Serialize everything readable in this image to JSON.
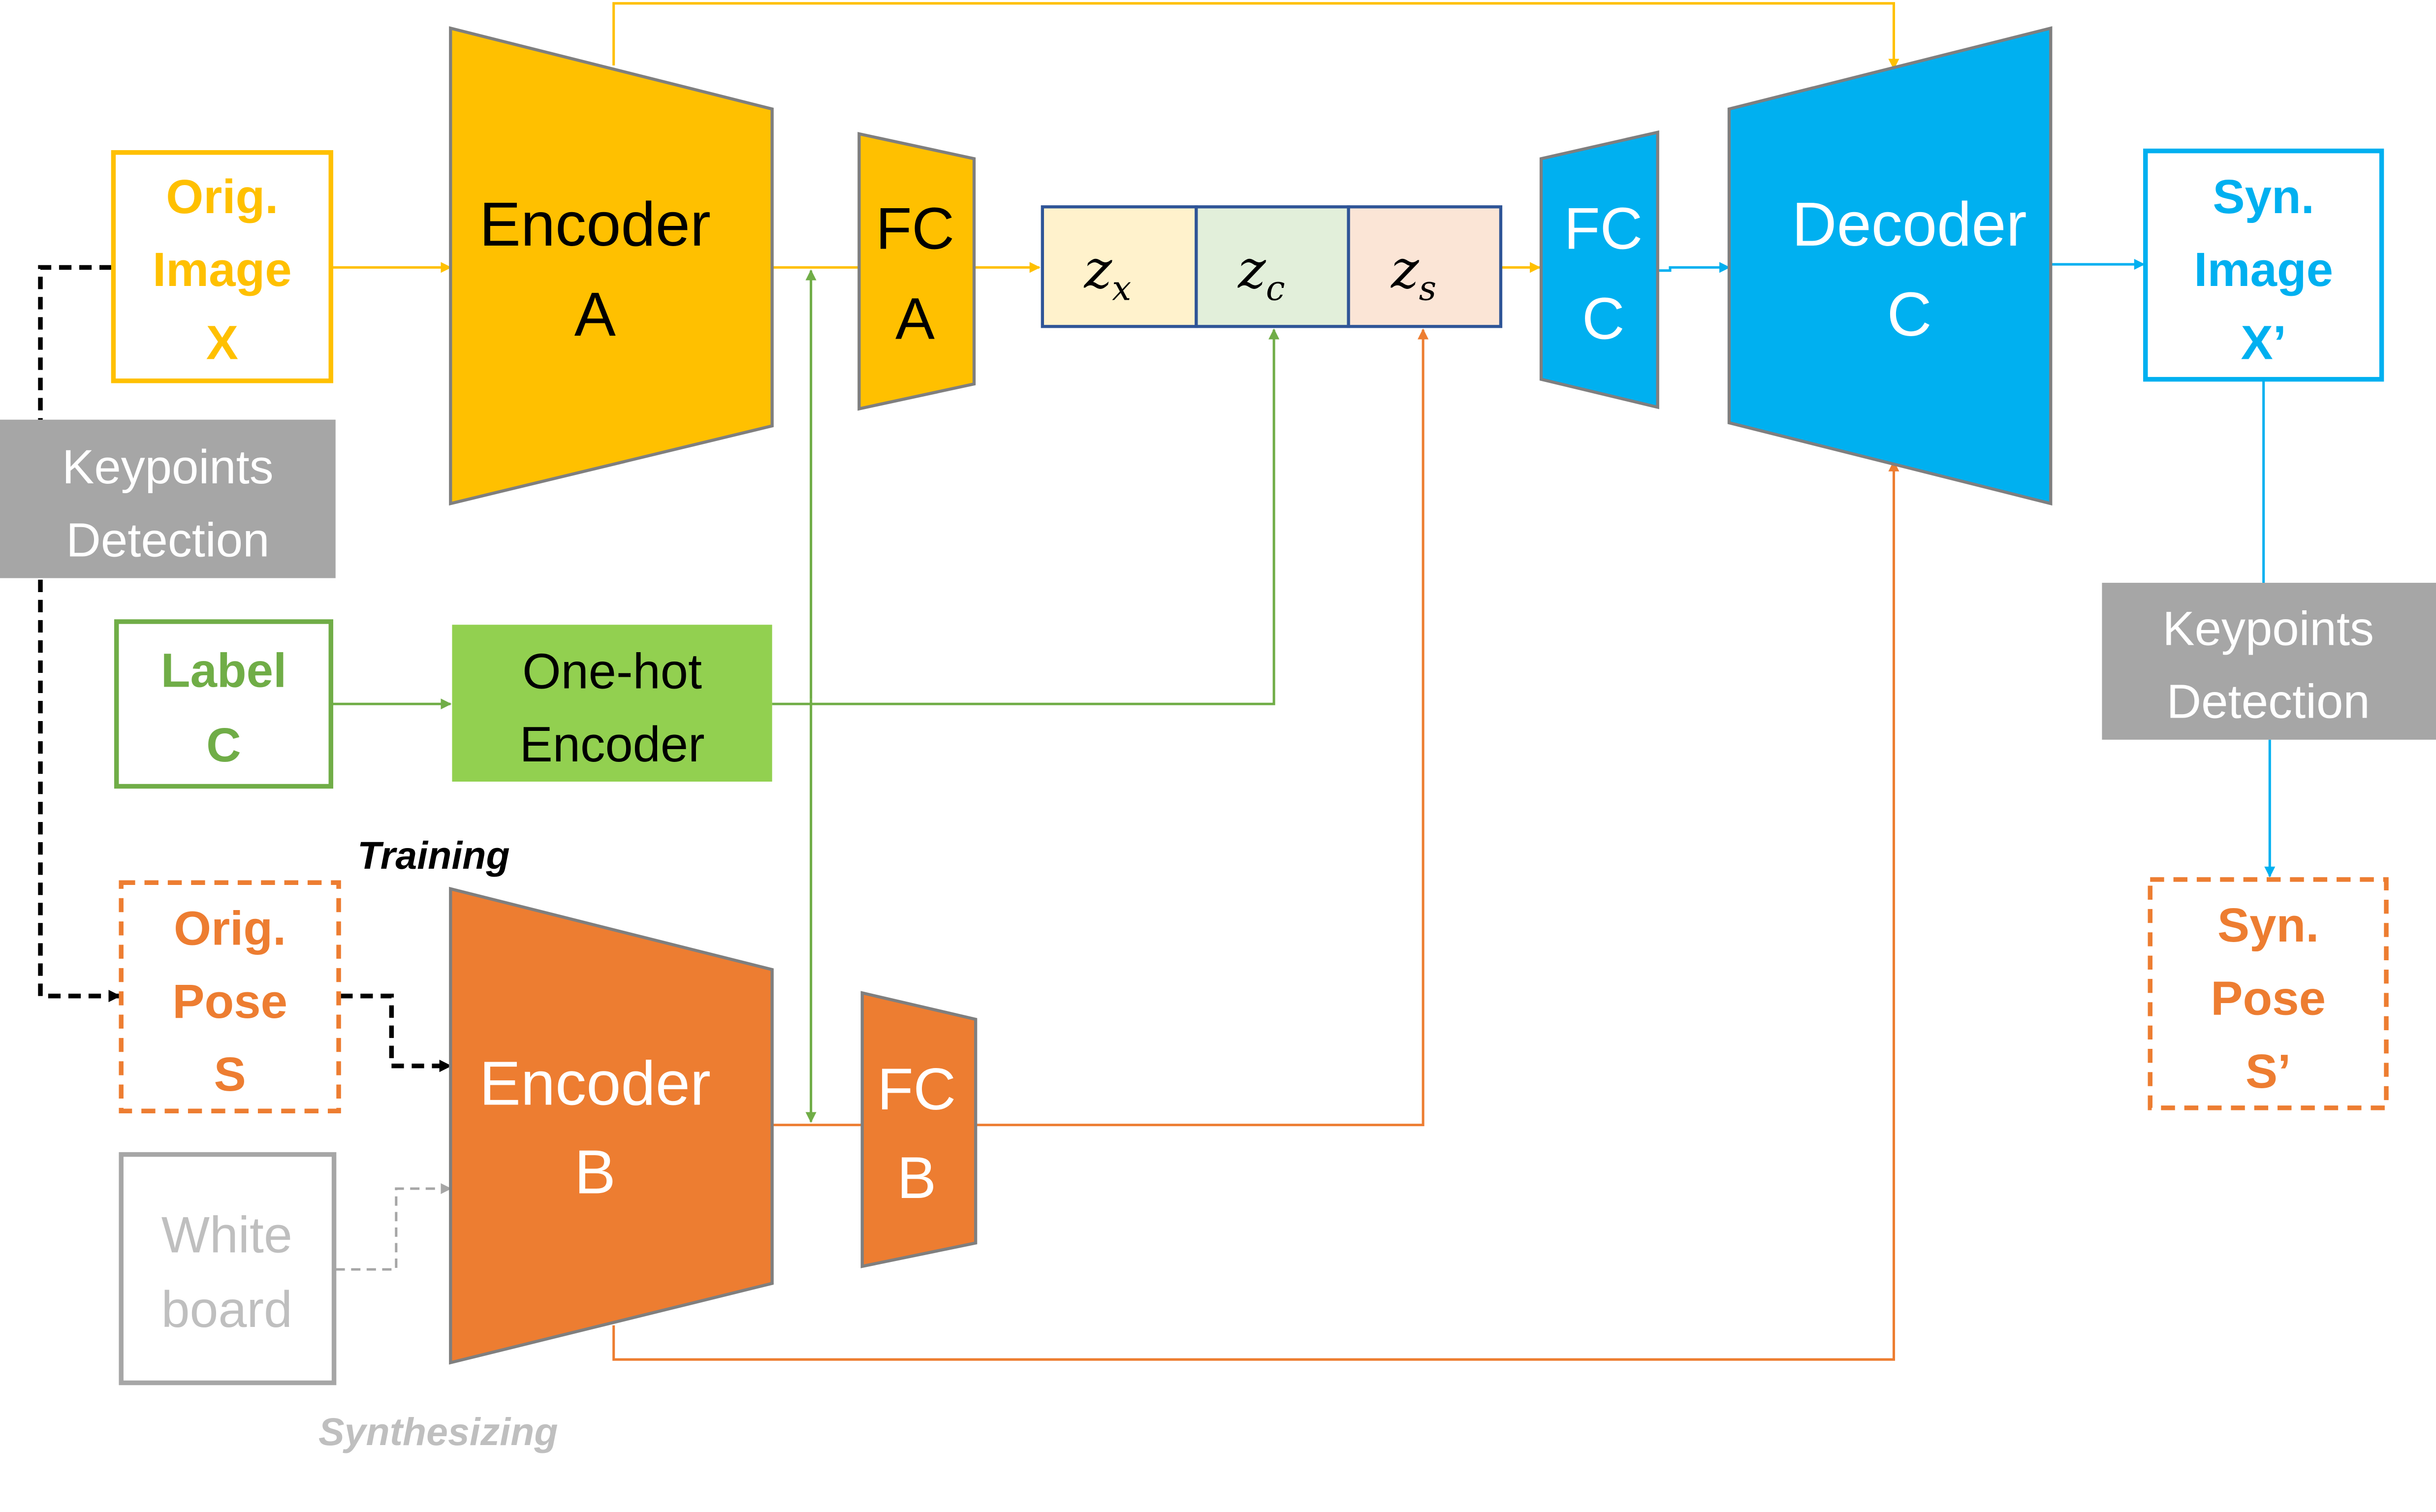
{
  "colors": {
    "yellow": "#FFC000",
    "green": "#70AD47",
    "green_fill": "#92D050",
    "orange": "#ED7D31",
    "blue": "#00B0F0",
    "gray": "#A6A6A6",
    "light_gray": "#BFBFBF",
    "dark_border": "#2F5597",
    "shape_border": "#7F7F7F"
  },
  "inputs": {
    "orig_image": [
      "Orig.",
      "Image",
      "X"
    ],
    "label": [
      "Label",
      "C"
    ],
    "orig_pose": [
      "Orig.",
      "Pose",
      "S"
    ],
    "white_board": [
      "White",
      "board"
    ]
  },
  "keypoints_left": [
    "Keypoints",
    "Detection"
  ],
  "keypoints_right": [
    "Keypoints",
    "Detection"
  ],
  "encoder_a": [
    "Encoder",
    "A"
  ],
  "encoder_b": [
    "Encoder",
    "B"
  ],
  "fc_a": [
    "FC",
    "A"
  ],
  "fc_b": [
    "FC",
    "B"
  ],
  "fc_c": [
    "FC",
    "C"
  ],
  "decoder_c": [
    "Decoder",
    "C"
  ],
  "one_hot": [
    "One-hot",
    "Encoder"
  ],
  "latent": {
    "zx": {
      "base": "z",
      "sub": "x"
    },
    "zc": {
      "base": "z",
      "sub": "c"
    },
    "zs": {
      "base": "z",
      "sub": "s"
    }
  },
  "outputs": {
    "syn_image": [
      "Syn.",
      "Image",
      "X’"
    ],
    "syn_pose": [
      "Syn.",
      "Pose",
      "S’"
    ]
  },
  "mode_labels": {
    "training": "Training",
    "synthesizing": "Synthesizing"
  }
}
